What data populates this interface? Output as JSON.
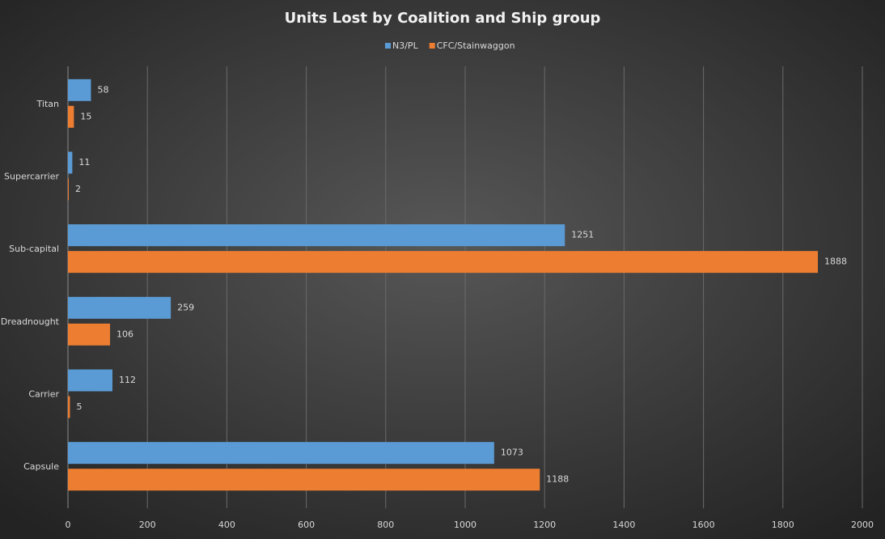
{
  "chart_data": {
    "type": "bar",
    "orientation": "horizontal",
    "title": "Units Lost by Coalition and Ship group",
    "categories": [
      "Titan",
      "Supercarrier",
      "Sub-capital",
      "Dreadnought",
      "Carrier",
      "Capsule"
    ],
    "series": [
      {
        "name": "N3/PL",
        "color": "#5b9bd5",
        "values": [
          58,
          11,
          1251,
          259,
          112,
          1073
        ]
      },
      {
        "name": "CFC/Stainwaggon",
        "color": "#ed7d31",
        "values": [
          15,
          2,
          1888,
          106,
          5,
          1188
        ]
      }
    ],
    "xlim": [
      0,
      2000
    ],
    "xticks": [
      0,
      200,
      400,
      600,
      800,
      1000,
      1200,
      1400,
      1600,
      1800,
      2000
    ],
    "grid": true,
    "legend": "top"
  }
}
